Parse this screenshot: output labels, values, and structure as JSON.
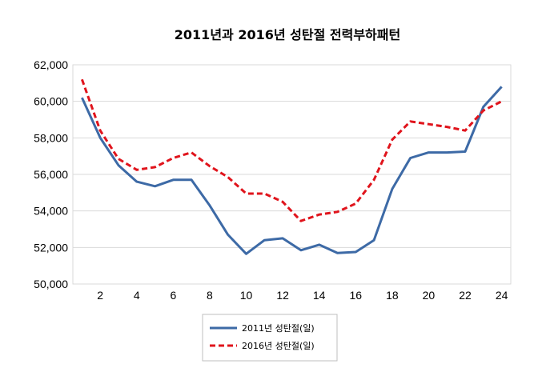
{
  "chart_data": {
    "type": "line",
    "title": "2011년과 2016년 성탄절 전력부하패턴",
    "xlabel": "",
    "ylabel": "",
    "x": [
      1,
      2,
      3,
      4,
      5,
      6,
      7,
      8,
      9,
      10,
      11,
      12,
      13,
      14,
      15,
      16,
      17,
      18,
      19,
      20,
      21,
      22,
      23,
      24
    ],
    "x_tick_labels": [
      "2",
      "4",
      "6",
      "8",
      "10",
      "12",
      "14",
      "16",
      "18",
      "20",
      "22",
      "24"
    ],
    "x_tick_values": [
      2,
      4,
      6,
      8,
      10,
      12,
      14,
      16,
      18,
      20,
      22,
      24
    ],
    "xlim": [
      0.5,
      24.5
    ],
    "ylim": [
      50000,
      62000
    ],
    "y_tick_values": [
      50000,
      52000,
      54000,
      56000,
      58000,
      60000,
      62000
    ],
    "y_tick_labels": [
      "50,000",
      "52,000",
      "54,000",
      "56,000",
      "58,000",
      "60,000",
      "62,000"
    ],
    "grid": "horizontal",
    "legend_position": "bottom",
    "series": [
      {
        "name": "2011년 성탄절(일)",
        "color": "#3d6aa6",
        "style": "solid",
        "values": [
          60200,
          58000,
          56500,
          55600,
          55350,
          55700,
          55700,
          54300,
          52700,
          51650,
          52400,
          52500,
          51850,
          52150,
          51700,
          51750,
          52400,
          55200,
          56900,
          57200,
          57200,
          57250,
          59700,
          60800
        ]
      },
      {
        "name": "2016년 성탄절(일)",
        "color": "#e0141c",
        "style": "dashed",
        "values": [
          61200,
          58400,
          56850,
          56250,
          56400,
          56900,
          57200,
          56450,
          55850,
          54950,
          54950,
          54500,
          53450,
          53800,
          53950,
          54400,
          55700,
          57900,
          58900,
          58750,
          58600,
          58400,
          59500,
          60000
        ]
      }
    ]
  }
}
